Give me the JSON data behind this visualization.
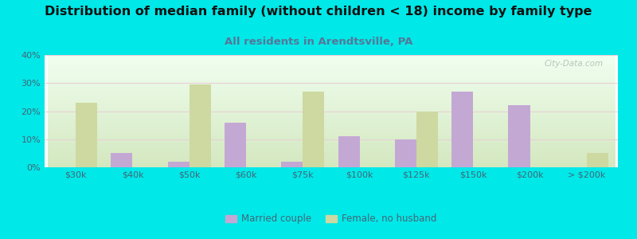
{
  "title": "Distribution of median family (without children < 18) income by family type",
  "subtitle": "All residents in Arendtsville, PA",
  "categories": [
    "$30k",
    "$40k",
    "$50k",
    "$60k",
    "$75k",
    "$100k",
    "$125k",
    "$150k",
    "$200k",
    "> $200k"
  ],
  "married_couple": [
    0,
    5,
    2,
    16,
    2,
    11,
    10,
    27,
    22,
    0
  ],
  "female_no_husband": [
    23,
    0,
    29.5,
    0,
    27,
    0,
    20,
    0,
    0,
    5
  ],
  "married_color": "#c4a8d4",
  "female_color": "#cdd9a0",
  "background_outer": "#00e8e8",
  "ylim": [
    0,
    40
  ],
  "yticks": [
    0,
    10,
    20,
    30,
    40
  ],
  "ytick_labels": [
    "0%",
    "10%",
    "20%",
    "30%",
    "40%"
  ],
  "bar_width": 0.38,
  "title_fontsize": 11.5,
  "subtitle_fontsize": 9.5,
  "watermark": "City-Data.com",
  "grid_color": "#e8d0d8",
  "title_color": "#111111",
  "subtitle_color": "#557799",
  "tick_color": "#446677"
}
